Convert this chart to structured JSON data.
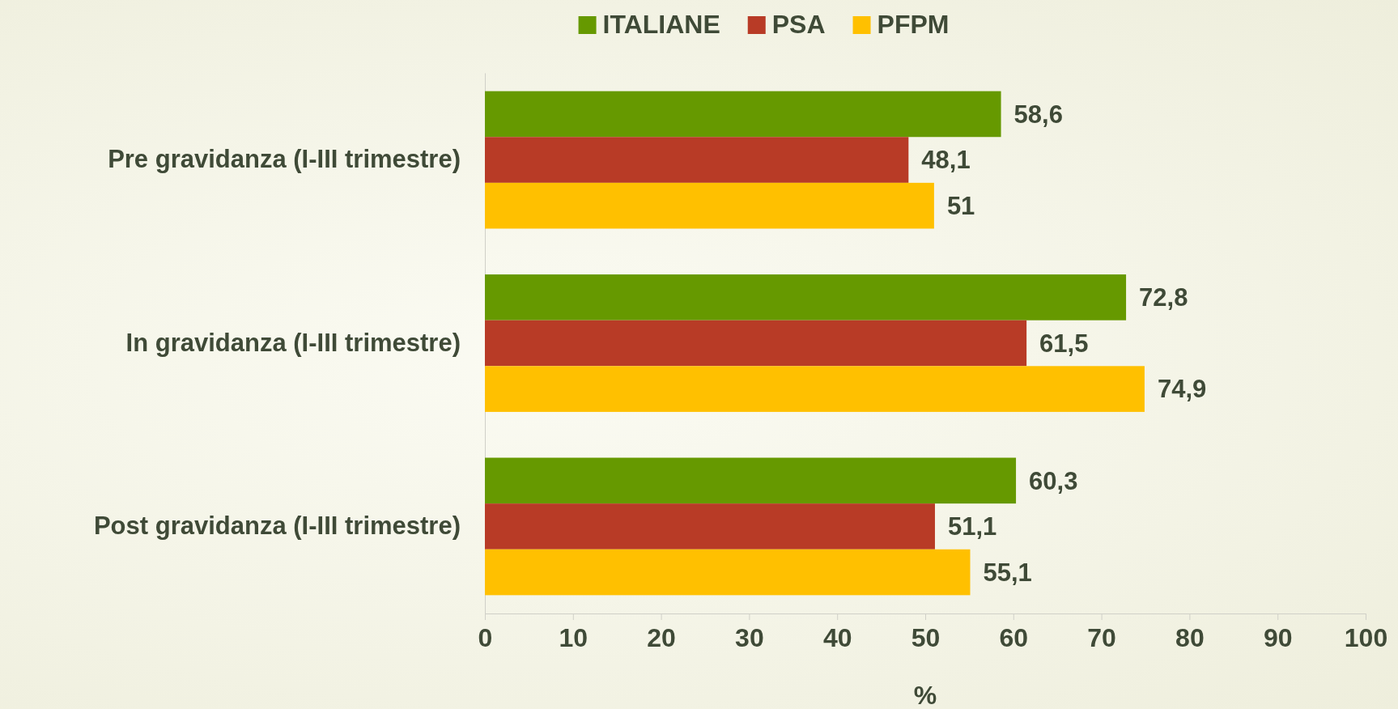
{
  "chart_data": {
    "type": "bar",
    "orientation": "horizontal",
    "xlabel": "%",
    "categories": [
      "Pre gravidanza (I-III trimestre)",
      "In gravidanza (I-III trimestre)",
      "Post gravidanza (I-III trimestre)"
    ],
    "series": [
      {
        "name": "ITALIANE",
        "color": "#669900",
        "values": [
          58.6,
          72.8,
          60.3
        ],
        "value_labels": [
          "58,6",
          "72,8",
          "60,3"
        ]
      },
      {
        "name": "PSA",
        "color": "#b83b26",
        "values": [
          48.1,
          61.5,
          51.1
        ],
        "value_labels": [
          "48,1",
          "61,5",
          "51,1"
        ]
      },
      {
        "name": "PFPM",
        "color": "#ffc000",
        "values": [
          51,
          74.9,
          55.1
        ],
        "value_labels": [
          "51",
          "74,9",
          "55,1"
        ]
      }
    ],
    "xlim": [
      0,
      100
    ],
    "xticks": [
      0,
      10,
      20,
      30,
      40,
      50,
      60,
      70,
      80,
      90,
      100
    ],
    "grid": false,
    "legend": "top"
  }
}
